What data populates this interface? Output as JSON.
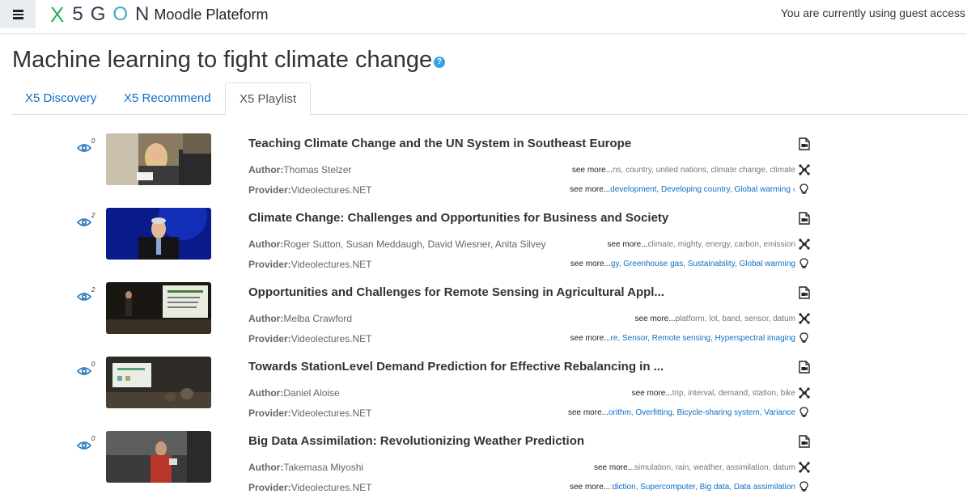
{
  "navbar": {
    "menu_icon": "hamburger-icon",
    "logo_letters": [
      "5",
      "G",
      "O",
      "N"
    ],
    "logo_x": "X",
    "brand_text": "Moodle Plateform",
    "guest_text": "You are currently using guest access"
  },
  "page": {
    "title": "Machine learning to fight climate change",
    "help_icon": "question-icon"
  },
  "tabs": [
    {
      "label": "X5 Discovery",
      "active": false
    },
    {
      "label": "X5 Recommend",
      "active": false
    },
    {
      "label": "X5 Playlist",
      "active": true
    }
  ],
  "items": [
    {
      "views": "0",
      "title": "Teaching Climate Change and the UN System in Southeast Europe",
      "author_label": "Author:",
      "author": "Thomas Stelzer",
      "provider_label": "Provider:",
      "provider": "Videolectures.NET",
      "see_more_concepts": "see more...",
      "concepts": "ns, country, united nations, climate change, climate",
      "see_more_wiki": "see more...",
      "wiki": "› development, Developing country, Global warming"
    },
    {
      "views": "2",
      "title": "Climate Change: Challenges and Opportunities for Business and Society",
      "author_label": "Author:",
      "author": "Roger Sutton, Susan Meddaugh, David Wiesner, Anita Silvey",
      "provider_label": "Provider:",
      "provider": "Videolectures.NET",
      "see_more_concepts": "see more...",
      "concepts": "climate, mighty, energy, carbon, emission",
      "see_more_wiki": "see more...",
      "wiki": "gy, Greenhouse gas, Sustainability, Global warming"
    },
    {
      "views": "2",
      "title": "Opportunities and Challenges for Remote Sensing in Agricultural Appl...",
      "author_label": "Author:",
      "author": "Melba Crawford",
      "provider_label": "Provider:",
      "provider": "Videolectures.NET",
      "see_more_concepts": "see more...",
      "concepts": "platform, lot, band, sensor, datum",
      "see_more_wiki": "see more...",
      "wiki": "re, Sensor, Remote sensing, Hyperspectral imaging"
    },
    {
      "views": "0",
      "title": "Towards StationLevel Demand Prediction for Effective Rebalancing in ...",
      "author_label": "Author:",
      "author": "Daniel Aloise",
      "provider_label": "Provider:",
      "provider": "Videolectures.NET",
      "see_more_concepts": "see more...",
      "concepts": "trip, interval, demand, station, bike",
      "see_more_wiki": "see more...",
      "wiki": "orithm, Overfitting, Bicycle-sharing system, Variance"
    },
    {
      "views": "0",
      "title": "Big Data Assimilation: Revolutionizing Weather Prediction",
      "author_label": "Author:",
      "author": "Takemasa Miyoshi",
      "provider_label": "Provider:",
      "provider": "Videolectures.NET",
      "see_more_concepts": "see more...",
      "concepts": "simulation, rain, weather, assimilation, datum",
      "see_more_wiki": "see more...",
      "wiki": "ːdiction, Supercomputer, Big data, Data assimilation"
    }
  ],
  "colors": {
    "link": "#0f6fc5",
    "logo_green": "#27ae60",
    "logo_blue": "#3fa9c9",
    "help_blue": "#2fa4e7"
  }
}
